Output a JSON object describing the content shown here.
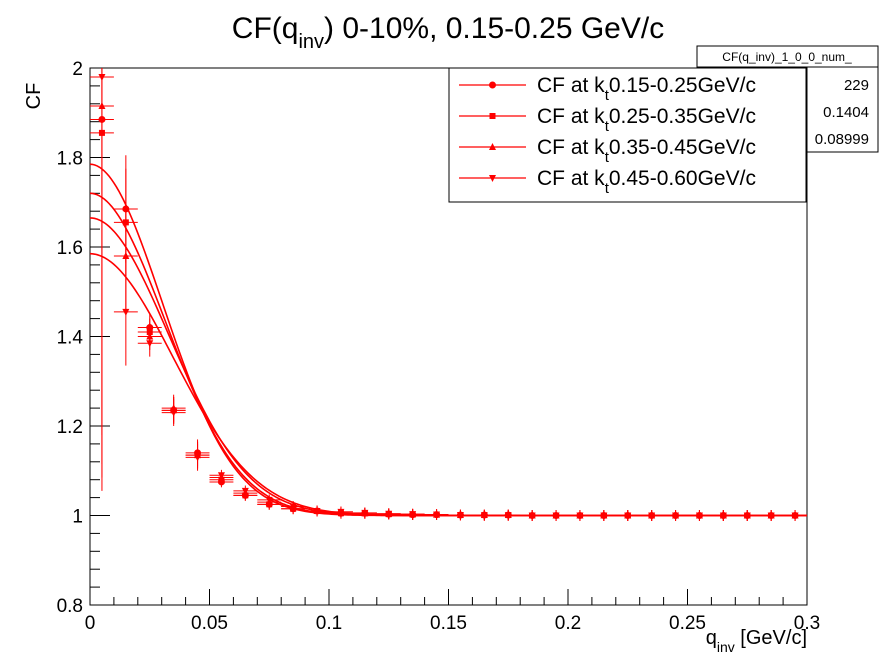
{
  "chart_data": {
    "type": "scatter",
    "title": {
      "main": "CF(q",
      "sub": "inv",
      "rest": ") 0-10%, 0.15-0.25 GeV/c"
    },
    "xlabel": {
      "main": "q",
      "sub": "inv",
      "rest": " [GeV/c]"
    },
    "ylabel": "CF",
    "xlim": [
      0,
      0.3
    ],
    "ylim": [
      0.8,
      2.0
    ],
    "x_ticks": [
      "0",
      "0.05",
      "0.1",
      "0.15",
      "0.2",
      "0.25",
      "0.3"
    ],
    "y_ticks": [
      "0.8",
      "1",
      "1.2",
      "1.4",
      "1.6",
      "1.8",
      "2"
    ],
    "grid": false,
    "legend_position": "top-right",
    "color": "#ff0000",
    "stats_box": {
      "title": "CF(q_inv)_1_0_0_num_",
      "values": [
        "229",
        "0.1404",
        "0.08999"
      ]
    },
    "series": [
      {
        "legend": {
          "pre": "CF at k",
          "sub": "t",
          "post": "0.15-0.25GeV/c"
        },
        "marker": "circle",
        "fit": {
          "lambda": 0.785,
          "R": 0.055
        },
        "x": [
          0.005,
          0.015,
          0.025,
          0.035,
          0.045,
          0.055,
          0.065,
          0.075,
          0.085,
          0.095,
          0.105,
          0.115,
          0.125,
          0.135,
          0.145,
          0.155,
          0.165,
          0.175,
          0.185,
          0.195,
          0.205,
          0.215,
          0.225,
          0.235,
          0.245,
          0.255,
          0.265,
          0.275,
          0.285,
          0.295
        ],
        "y": [
          1.885,
          1.685,
          1.42,
          1.235,
          1.14,
          1.075,
          1.045,
          1.025,
          1.015,
          1.01,
          1.005,
          1.005,
          1.003,
          1.002,
          1.002,
          1.001,
          1.001,
          1.001,
          1.0,
          1.0,
          1.0,
          1.0,
          1.0,
          1.0,
          1.0,
          1.0,
          1.0,
          1.0,
          1.0,
          1.0
        ]
      },
      {
        "legend": {
          "pre": "CF at k",
          "sub": "t",
          "post": "0.25-0.35GeV/c"
        },
        "marker": "square",
        "fit": {
          "lambda": 0.72,
          "R": 0.057
        },
        "x": [
          0.005,
          0.015,
          0.025,
          0.035,
          0.045,
          0.055,
          0.065,
          0.075,
          0.085,
          0.095,
          0.105,
          0.115,
          0.125,
          0.135,
          0.145,
          0.155,
          0.165,
          0.175,
          0.185,
          0.195,
          0.205,
          0.215,
          0.225,
          0.235,
          0.245,
          0.255,
          0.265,
          0.275,
          0.285,
          0.295
        ],
        "y": [
          1.855,
          1.655,
          1.41,
          1.235,
          1.135,
          1.08,
          1.045,
          1.025,
          1.015,
          1.01,
          1.005,
          1.005,
          1.003,
          1.002,
          1.002,
          1.001,
          1.001,
          1.001,
          1.0,
          1.0,
          1.0,
          1.0,
          1.0,
          1.0,
          1.0,
          1.0,
          1.0,
          1.0,
          1.0,
          1.0
        ]
      },
      {
        "legend": {
          "pre": "CF at k",
          "sub": "t",
          "post": "0.35-0.45GeV/c"
        },
        "marker": "triangle-up",
        "fit": {
          "lambda": 0.665,
          "R": 0.06
        },
        "x": [
          0.005,
          0.015,
          0.025,
          0.035,
          0.045,
          0.055,
          0.065,
          0.075,
          0.085,
          0.095,
          0.105,
          0.115,
          0.125,
          0.135,
          0.145,
          0.155,
          0.165,
          0.175,
          0.185,
          0.195,
          0.205,
          0.215,
          0.225,
          0.235,
          0.245,
          0.255,
          0.265,
          0.275,
          0.285,
          0.295
        ],
        "y": [
          1.915,
          1.58,
          1.4,
          1.24,
          1.135,
          1.085,
          1.05,
          1.03,
          1.02,
          1.01,
          1.008,
          1.005,
          1.004,
          1.003,
          1.002,
          1.001,
          1.001,
          1.001,
          1.0,
          1.0,
          1.0,
          1.0,
          1.0,
          1.0,
          1.0,
          1.0,
          1.0,
          1.0,
          1.0,
          1.0
        ]
      },
      {
        "legend": {
          "pre": "CF at k",
          "sub": "t",
          "post": "0.45-0.60GeV/c"
        },
        "marker": "triangle-down",
        "fit": {
          "lambda": 0.585,
          "R": 0.063
        },
        "x": [
          0.005,
          0.015,
          0.025,
          0.035,
          0.045,
          0.055,
          0.065,
          0.075,
          0.085,
          0.095,
          0.105,
          0.115,
          0.125,
          0.135,
          0.145,
          0.155,
          0.165,
          0.175,
          0.185,
          0.195,
          0.205,
          0.215,
          0.225,
          0.235,
          0.245,
          0.255,
          0.265,
          0.275,
          0.285,
          0.295
        ],
        "y": [
          1.98,
          1.455,
          1.385,
          1.23,
          1.13,
          1.09,
          1.055,
          1.035,
          1.02,
          1.01,
          1.008,
          1.006,
          1.004,
          1.003,
          1.002,
          1.001,
          1.0,
          1.0,
          1.0,
          1.0,
          1.0,
          1.0,
          1.0,
          1.0,
          1.0,
          1.0,
          1.0,
          1.0,
          1.0,
          1.0
        ]
      }
    ]
  }
}
